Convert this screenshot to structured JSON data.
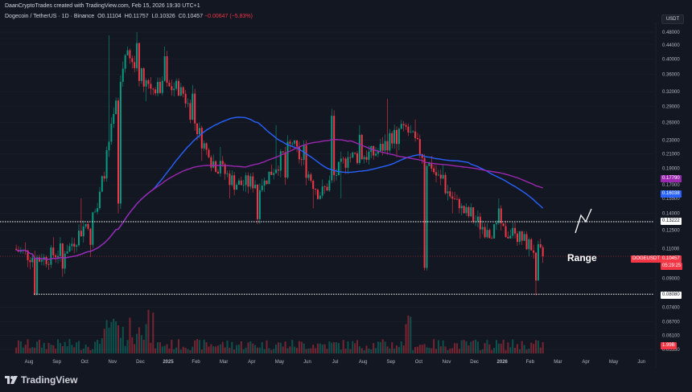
{
  "header": {
    "author_line": "DaanCryptoTrades created with TradingView.com, Feb 15, 2026 19:30 UTC+1"
  },
  "legend": {
    "symbol": "Dogecoin / TetherUS · 1D · Binance",
    "open": "O0.11104",
    "high": "H0.11757",
    "low": "L0.10326",
    "close": "C0.10457",
    "change": "−0.00647 (−5.83%)"
  },
  "currency_button": "USDT",
  "branding": "TradingView",
  "annotation": "Range",
  "price_tags": {
    "ma_purple": "0.17790",
    "ma_blue": "0.16038",
    "range_top": "0.13222",
    "symbol_label": "DOGEUSDT",
    "last_price": "0.10457",
    "countdown": "05:29:25",
    "range_bottom": "0.08080",
    "volume": "1.99B"
  },
  "colors": {
    "background": "#131722",
    "up": "#089981",
    "down": "#f23645",
    "ma_purple": "#9c27b0",
    "ma_blue": "#2962ff"
  },
  "chart_data": {
    "type": "candlestick",
    "symbol": "DOGEUSDT",
    "scale": "log",
    "y_ticks": [
      "0.48000",
      "0.44000",
      "0.40000",
      "0.36000",
      "0.32000",
      "0.29000",
      "0.26000",
      "0.23000",
      "0.21000",
      "0.19000",
      "0.17000",
      "0.15500",
      "0.14000",
      "0.12500",
      "0.11000",
      "0.09000",
      "0.07400",
      "0.06700",
      "0.06100",
      "0.05550"
    ],
    "x_ticks": [
      "Aug",
      "Sep",
      "Oct",
      "Nov",
      "Dec",
      "2025",
      "Feb",
      "Mar",
      "Apr",
      "May",
      "Jun",
      "Jul",
      "Aug",
      "Sep",
      "Oct",
      "Nov",
      "Dec",
      "2026",
      "Feb",
      "Mar",
      "Apr",
      "May",
      "Jun"
    ],
    "monthly_candles": [
      {
        "month": "Aug",
        "o": 0.11,
        "h": 0.115,
        "l": 0.08,
        "c": 0.102
      },
      {
        "month": "Sep",
        "o": 0.102,
        "h": 0.119,
        "l": 0.091,
        "c": 0.112
      },
      {
        "month": "Oct",
        "o": 0.112,
        "h": 0.155,
        "l": 0.104,
        "c": 0.145
      },
      {
        "month": "Nov",
        "o": 0.145,
        "h": 0.47,
        "l": 0.14,
        "c": 0.41
      },
      {
        "month": "Dec",
        "o": 0.41,
        "h": 0.48,
        "l": 0.3,
        "c": 0.325
      },
      {
        "month": "2025",
        "o": 0.325,
        "h": 0.435,
        "l": 0.31,
        "c": 0.33
      },
      {
        "month": "Feb",
        "o": 0.33,
        "h": 0.335,
        "l": 0.2,
        "c": 0.205
      },
      {
        "month": "Mar",
        "o": 0.205,
        "h": 0.22,
        "l": 0.155,
        "c": 0.17
      },
      {
        "month": "Apr",
        "o": 0.17,
        "h": 0.185,
        "l": 0.13,
        "c": 0.175
      },
      {
        "month": "May",
        "o": 0.175,
        "h": 0.255,
        "l": 0.17,
        "c": 0.225
      },
      {
        "month": "Jun",
        "o": 0.225,
        "h": 0.23,
        "l": 0.145,
        "c": 0.158
      },
      {
        "month": "Jul",
        "o": 0.158,
        "h": 0.285,
        "l": 0.155,
        "c": 0.205
      },
      {
        "month": "Aug",
        "o": 0.205,
        "h": 0.255,
        "l": 0.195,
        "c": 0.21
      },
      {
        "month": "Sep",
        "o": 0.21,
        "h": 0.305,
        "l": 0.205,
        "c": 0.255
      },
      {
        "month": "Oct",
        "o": 0.255,
        "h": 0.265,
        "l": 0.095,
        "c": 0.19
      },
      {
        "month": "Nov",
        "o": 0.19,
        "h": 0.195,
        "l": 0.14,
        "c": 0.145
      },
      {
        "month": "Dec",
        "o": 0.145,
        "h": 0.15,
        "l": 0.118,
        "c": 0.125
      },
      {
        "month": "2026",
        "o": 0.125,
        "h": 0.155,
        "l": 0.118,
        "c": 0.122
      },
      {
        "month": "Feb",
        "o": 0.122,
        "h": 0.124,
        "l": 0.08,
        "c": 0.10457
      }
    ],
    "moving_averages": [
      {
        "color": "purple",
        "last": 0.1779
      },
      {
        "color": "blue",
        "last": 0.16038
      }
    ],
    "levels": [
      {
        "price": 0.13222,
        "style": "dotted"
      },
      {
        "price": 0.0808,
        "style": "dotted"
      }
    ],
    "last_price": 0.10457,
    "volume_last": "1.99B"
  }
}
